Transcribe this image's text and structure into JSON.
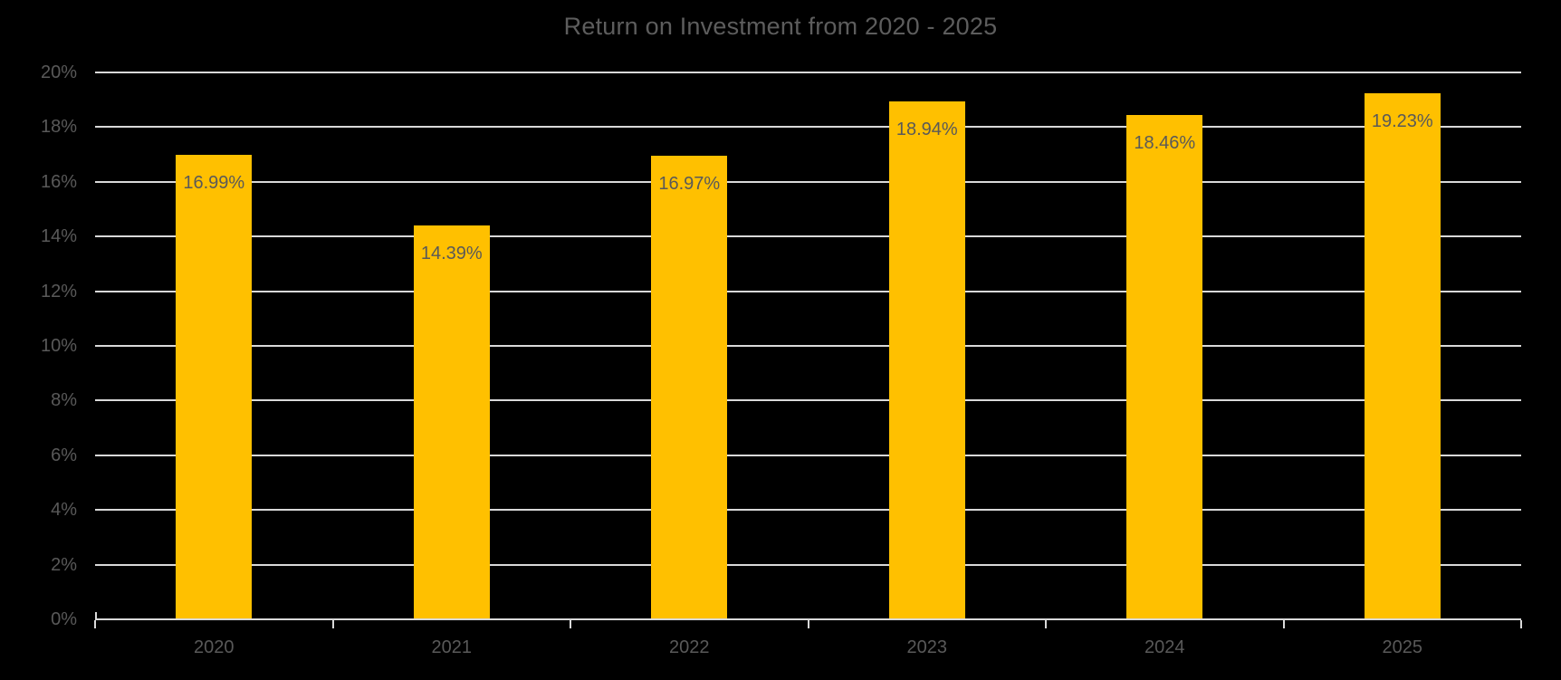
{
  "chart_data": {
    "type": "bar",
    "title": "Return on Investment from 2020 - 2025",
    "categories": [
      "2020",
      "2021",
      "2022",
      "2023",
      "2024",
      "2025"
    ],
    "values": [
      16.99,
      14.39,
      16.97,
      18.94,
      18.46,
      19.23
    ],
    "data_labels": [
      "16.99%",
      "14.39%",
      "16.97%",
      "18.94%",
      "18.46%",
      "19.23%"
    ],
    "y_tick_labels": [
      "0%",
      "2%",
      "4%",
      "6%",
      "8%",
      "10%",
      "12%",
      "14%",
      "16%",
      "18%",
      "20%"
    ],
    "ylim": [
      0,
      20
    ],
    "y_tick_step": 2,
    "xlabel": "",
    "ylabel": "",
    "grid": "horizontal",
    "legend": "none",
    "label_position": "inside-end",
    "colors": {
      "background": "#000000",
      "bar_fill": "#FFC000",
      "title_text": "#5d5d5d",
      "axis_text": "#595959",
      "data_label_text": "#595959",
      "gridline": "#d9d9d9",
      "axis_line": "#d9d9d9"
    }
  }
}
